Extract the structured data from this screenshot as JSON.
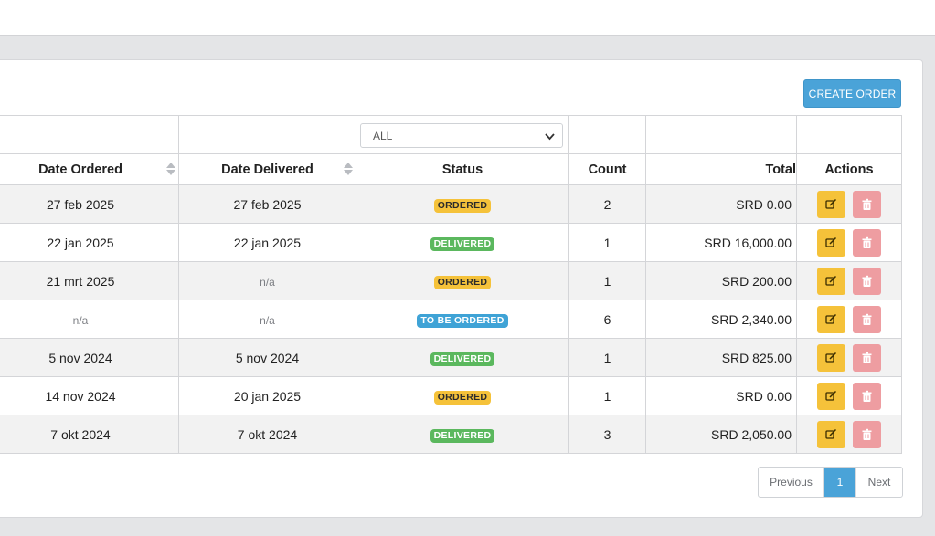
{
  "toolbar": {
    "create_label": "CREATE ORDER"
  },
  "filter": {
    "status_value": "ALL"
  },
  "columns": {
    "date_ordered": "Date Ordered",
    "date_delivered": "Date Delivered",
    "status": "Status",
    "count": "Count",
    "total": "Total",
    "actions": "Actions"
  },
  "rows": [
    {
      "ordered": "27 feb 2025",
      "delivered": "27 feb 2025",
      "status": "ORDERED",
      "count": "2",
      "total": "SRD 0.00"
    },
    {
      "ordered": "22 jan 2025",
      "delivered": "22 jan 2025",
      "status": "DELIVERED",
      "count": "1",
      "total": "SRD 16,000.00"
    },
    {
      "ordered": "21 mrt 2025",
      "delivered": "n/a",
      "status": "ORDERED",
      "count": "1",
      "total": "SRD 200.00"
    },
    {
      "ordered": "n/a",
      "delivered": "n/a",
      "status": "TO BE ORDERED",
      "count": "6",
      "total": "SRD 2,340.00"
    },
    {
      "ordered": "5 nov 2024",
      "delivered": "5 nov 2024",
      "status": "DELIVERED",
      "count": "1",
      "total": "SRD 825.00"
    },
    {
      "ordered": "14 nov 2024",
      "delivered": "20 jan 2025",
      "status": "ORDERED",
      "count": "1",
      "total": "SRD 0.00"
    },
    {
      "ordered": "7 okt 2024",
      "delivered": "7 okt 2024",
      "status": "DELIVERED",
      "count": "3",
      "total": "SRD 2,050.00"
    }
  ],
  "pagination": {
    "previous": "Previous",
    "current": "1",
    "next": "Next"
  },
  "colors": {
    "accent": "#4aa3d8",
    "ordered": "#f5c23a",
    "delivered": "#5bb85e",
    "to_be_ordered": "#3fa3d6",
    "delete": "#ee9da1"
  },
  "icons": {
    "edit": "pencil-square-icon",
    "delete": "trash-icon",
    "sort": "sort-icon",
    "dropdown": "chevron-down-icon"
  }
}
